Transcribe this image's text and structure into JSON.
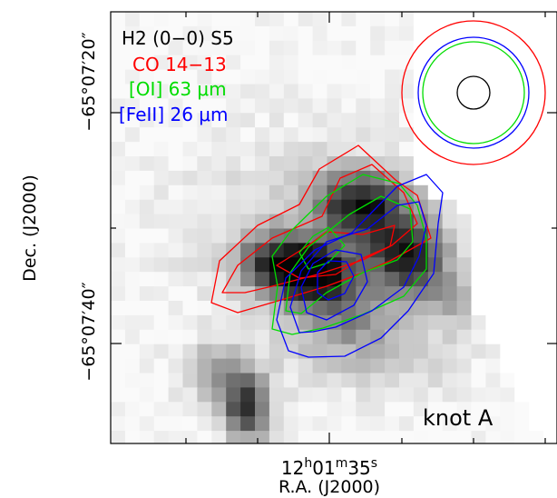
{
  "chart_data": {
    "type": "heatmap",
    "xlabel": "R.A. (J2000)",
    "ylabel": "Dec. (J2000)",
    "x_tick_label": {
      "h": "12",
      "m": "01",
      "s": "35"
    },
    "y_tick_labels": [
      "−65°07′20″",
      "−65°07′40″"
    ],
    "annotation": "knot A",
    "grid": false,
    "legend_position": "top-left",
    "legend": [
      {
        "text": "H2 (0−0) S5",
        "color": "#000000"
      },
      {
        "text": "CO 14−13",
        "color": "#ff0000"
      },
      {
        "text": "[OI] 63 μm",
        "color": "#00dd00"
      },
      {
        "text": "[FeII] 26 μm",
        "color": "#0000ff"
      }
    ],
    "beams": [
      {
        "name": "H2 (0−0) S5",
        "color": "#000000",
        "diameter_arcsec": 5.6
      },
      {
        "name": "[OI] 63 μm",
        "color": "#00dd00",
        "diameter_arcsec": 17.4
      },
      {
        "name": "[FeII] 26 μm",
        "color": "#0000ff",
        "diameter_arcsec": 18.6
      },
      {
        "name": "CO 14−13",
        "color": "#ff0000",
        "diameter_arcsec": 24.4
      }
    ],
    "colors": {
      "frame": "#000000",
      "CO": "#ff0000",
      "OI": "#00dd00",
      "FeII": "#0000ff"
    }
  }
}
